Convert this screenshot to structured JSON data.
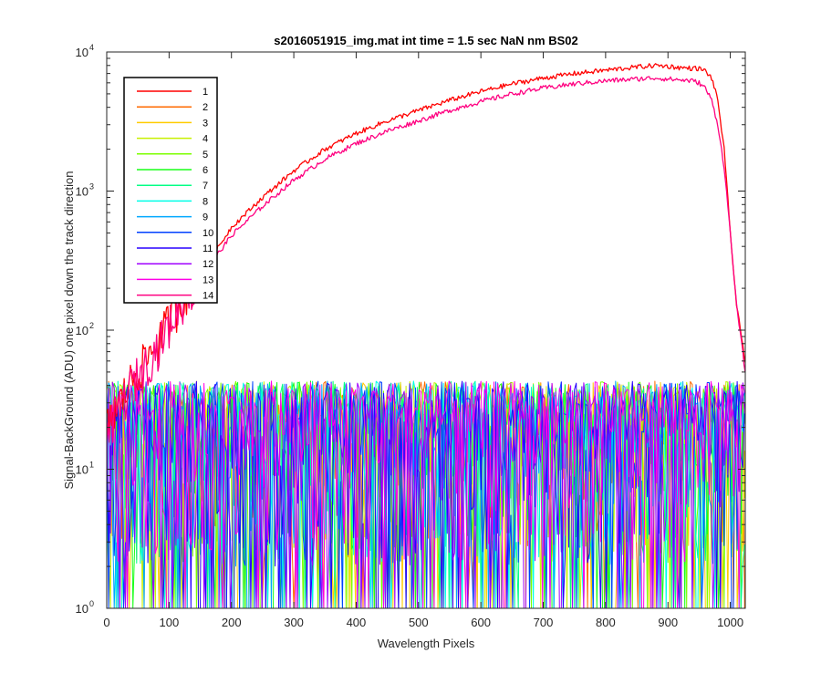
{
  "chart_data": {
    "type": "line",
    "title": "s2016051915_img.mat int time = 1.5 sec  NaN nm BS02",
    "xlabel": "Wavelength Pixels",
    "ylabel": "Signal-BackGround (ADU) one pixel down the track direction",
    "xlim": [
      0,
      1024
    ],
    "ylim": [
      1,
      10000
    ],
    "yscale": "log",
    "grid": false,
    "legend_position": "top-left",
    "x_ticks": [
      0,
      100,
      200,
      300,
      400,
      500,
      600,
      700,
      800,
      900,
      1000
    ],
    "y_ticks": [
      {
        "base": "10",
        "exp": "0",
        "value": 1
      },
      {
        "base": "10",
        "exp": "1",
        "value": 10
      },
      {
        "base": "10",
        "exp": "2",
        "value": 100
      },
      {
        "base": "10",
        "exp": "3",
        "value": 1000
      },
      {
        "base": "10",
        "exp": "4",
        "value": 10000
      }
    ],
    "series": [
      {
        "name": "1",
        "color": "#ff0000",
        "kind": "signal",
        "x": [
          0,
          20,
          40,
          60,
          80,
          100,
          120,
          140,
          160,
          180,
          200,
          250,
          300,
          350,
          400,
          450,
          500,
          550,
          600,
          650,
          700,
          750,
          800,
          850,
          880,
          900,
          920,
          950,
          960,
          970,
          980,
          990,
          1000,
          1010,
          1024
        ],
        "y": [
          20,
          30,
          45,
          60,
          80,
          120,
          170,
          230,
          300,
          400,
          550,
          900,
          1400,
          2000,
          2600,
          3200,
          3800,
          4500,
          5200,
          5900,
          6500,
          7000,
          7400,
          7800,
          8000,
          7900,
          7700,
          7600,
          7300,
          6500,
          4500,
          2000,
          500,
          150,
          60
        ]
      },
      {
        "name": "2",
        "color": "#ff6a00",
        "kind": "noise",
        "x": [],
        "y": []
      },
      {
        "name": "3",
        "color": "#ffcc00",
        "kind": "noise",
        "x": [],
        "y": []
      },
      {
        "name": "4",
        "color": "#c8f000",
        "kind": "noise",
        "x": [],
        "y": []
      },
      {
        "name": "5",
        "color": "#7cff00",
        "kind": "noise",
        "x": [],
        "y": []
      },
      {
        "name": "6",
        "color": "#19ff19",
        "kind": "noise",
        "x": [],
        "y": []
      },
      {
        "name": "7",
        "color": "#00ff85",
        "kind": "noise",
        "x": [],
        "y": []
      },
      {
        "name": "8",
        "color": "#00ffe8",
        "kind": "noise",
        "x": [],
        "y": []
      },
      {
        "name": "9",
        "color": "#00a8ff",
        "kind": "noise",
        "x": [],
        "y": []
      },
      {
        "name": "10",
        "color": "#0040ff",
        "kind": "noise",
        "x": [],
        "y": []
      },
      {
        "name": "11",
        "color": "#2800ff",
        "kind": "noise",
        "x": [],
        "y": []
      },
      {
        "name": "12",
        "color": "#a000ff",
        "kind": "noise",
        "x": [],
        "y": []
      },
      {
        "name": "13",
        "color": "#ff00e6",
        "kind": "noise",
        "x": [],
        "y": []
      },
      {
        "name": "14",
        "color": "#ff0080",
        "kind": "signal",
        "x": [
          0,
          20,
          40,
          60,
          80,
          100,
          120,
          140,
          160,
          180,
          200,
          250,
          300,
          350,
          400,
          450,
          500,
          550,
          600,
          650,
          700,
          750,
          800,
          850,
          880,
          900,
          920,
          940,
          950,
          960,
          970,
          980,
          990,
          1000,
          1010,
          1024
        ],
        "y": [
          18,
          28,
          42,
          55,
          75,
          110,
          160,
          210,
          280,
          360,
          480,
          780,
          1200,
          1700,
          2200,
          2700,
          3200,
          3800,
          4400,
          5000,
          5500,
          5900,
          6200,
          6400,
          6500,
          6400,
          6300,
          6200,
          6000,
          5500,
          4500,
          3000,
          1500,
          500,
          150,
          50
        ]
      }
    ]
  }
}
